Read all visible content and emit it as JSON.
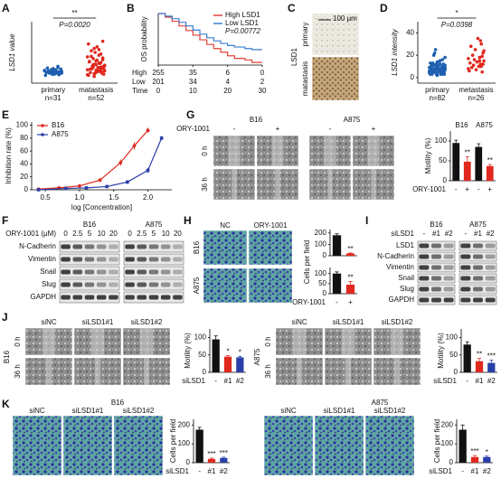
{
  "panel_labels": [
    "A",
    "B",
    "C",
    "D",
    "E",
    "F",
    "G",
    "H",
    "I",
    "J",
    "K"
  ],
  "chart_data": [
    {
      "type": "dot",
      "ylabel": "LSD1 value",
      "categories": [
        "primary",
        "matastasis"
      ],
      "n_labels": [
        "n=31",
        "n=52"
      ],
      "groups": [
        {
          "color": "#1f5fb0",
          "values": [
            22,
            18,
            25,
            20,
            15,
            28,
            19,
            23,
            17,
            21,
            26,
            16,
            24,
            20,
            18,
            22,
            27,
            19,
            14,
            23,
            21,
            25,
            17,
            20,
            30,
            18,
            22,
            24,
            16,
            19,
            21
          ]
        },
        {
          "color": "#e0281e",
          "values": [
            15,
            22,
            30,
            45,
            18,
            25,
            35,
            60,
            28,
            20,
            40,
            55,
            12,
            33,
            26,
            48,
            19,
            38,
            70,
            24,
            31,
            16,
            42,
            29,
            52,
            21,
            36,
            27,
            65,
            23,
            34,
            17,
            44,
            30,
            58,
            25,
            39,
            14,
            47,
            32,
            26,
            75,
            20,
            37,
            28,
            50,
            22,
            41,
            33,
            18,
            62,
            29
          ]
        }
      ],
      "ylim": [
        0,
        110
      ],
      "sig": "**",
      "p_label": "P=0.0020"
    },
    {
      "type": "step",
      "ylabel": "OS probability",
      "series": [
        {
          "name": "High LSD1",
          "color": "#e0413a",
          "x": [
            0,
            2,
            4,
            6,
            8,
            10,
            12,
            14,
            16,
            18,
            20,
            22,
            25,
            27,
            30
          ],
          "values": [
            1,
            0.93,
            0.85,
            0.76,
            0.67,
            0.58,
            0.49,
            0.4,
            0.32,
            0.25,
            0.18,
            0.13,
            0.1,
            0.05,
            0.05
          ]
        },
        {
          "name": "Low LSD1",
          "color": "#3a7fd0",
          "x": [
            0,
            2,
            4,
            6,
            8,
            10,
            12,
            14,
            16,
            18,
            20,
            22,
            25,
            27,
            30
          ],
          "values": [
            1,
            0.95,
            0.9,
            0.83,
            0.76,
            0.68,
            0.6,
            0.53,
            0.47,
            0.42,
            0.38,
            0.35,
            0.32,
            0.3,
            0.3
          ]
        }
      ],
      "p_label": "P=0.00772",
      "xlim": [
        0,
        30
      ],
      "ylim": [
        0,
        1
      ],
      "xticks": [
        0,
        10,
        20,
        30
      ],
      "time_label": "Time",
      "risk_table": [
        {
          "label": "High",
          "values": [
            255,
            35,
            6,
            0
          ]
        },
        {
          "label": "Low",
          "values": [
            201,
            34,
            4,
            2
          ]
        }
      ]
    },
    {
      "type": "dot",
      "ylabel": "LSD1 intensity",
      "categories": [
        "primary",
        "metastasis"
      ],
      "n_labels": [
        "n=82",
        "n=26"
      ],
      "groups": [
        {
          "color": "#1f5fb0",
          "values": [
            5,
            8,
            3,
            12,
            7,
            9,
            4,
            15,
            6,
            10,
            2,
            8,
            11,
            5,
            7,
            13,
            3,
            9,
            6,
            4,
            18,
            7,
            5,
            10,
            8,
            3,
            12,
            6,
            9,
            14,
            4,
            7,
            22,
            5,
            8,
            11,
            6,
            3,
            9,
            7,
            10,
            5,
            16,
            8,
            4,
            12,
            7,
            6,
            9,
            3,
            25,
            8,
            5,
            11,
            7,
            4,
            13,
            6,
            9,
            5,
            8,
            10,
            3,
            7,
            15,
            6,
            9,
            4,
            12,
            8,
            5,
            20,
            7,
            6,
            10,
            4,
            9,
            11,
            3,
            7,
            6,
            8
          ]
        },
        {
          "color": "#e0281e",
          "values": [
            8,
            15,
            22,
            5,
            30,
            12,
            18,
            10,
            35,
            14,
            7,
            25,
            16,
            11,
            20,
            9,
            28,
            13,
            6,
            17,
            24,
            12,
            19,
            10,
            33,
            15
          ]
        }
      ],
      "ylim": [
        -5,
        50
      ],
      "yticks": [
        0,
        20,
        40
      ],
      "sig": "*",
      "p_label": "P=0.0398"
    },
    {
      "type": "line",
      "ylabel": "Inhibition rate (%)",
      "xlabel": "log [Concentration]",
      "series": [
        {
          "name": "B16",
          "color": "#e0281e",
          "x": [
            0.4,
            0.7,
            1.0,
            1.3,
            1.6,
            1.8,
            2.0
          ],
          "values": [
            1,
            3,
            6,
            15,
            42,
            68,
            92
          ],
          "errors": [
            1,
            1,
            2,
            3,
            5,
            6,
            4
          ]
        },
        {
          "name": "A875",
          "color": "#2a3fa8",
          "x": [
            0.4,
            0.8,
            1.1,
            1.4,
            1.7,
            2.0,
            2.2
          ],
          "values": [
            0,
            2,
            3,
            5,
            12,
            30,
            80
          ],
          "errors": [
            1,
            1,
            1,
            2,
            3,
            4,
            3
          ]
        }
      ],
      "xlim": [
        0.3,
        2.35
      ],
      "ylim": [
        0,
        105
      ],
      "xticks": [
        0.5,
        {
          "value": 1,
          "label": "1.0"
        },
        1.5,
        {
          "value": 2,
          "label": "2.0"
        }
      ],
      "yticks": [
        0,
        20,
        40,
        60,
        80,
        100
      ]
    },
    {
      "type": "bar",
      "ylabel": "Motility (%)",
      "xlabel": "ORY-1001",
      "categories": [
        "-",
        "+",
        "-",
        "+"
      ],
      "group_labels": [
        "B16",
        "A875"
      ],
      "values": [
        95,
        48,
        85,
        37
      ],
      "errors": [
        7,
        12,
        8,
        4
      ],
      "colors": [
        "#111111",
        "#e0281e",
        "#111111",
        "#e0281e"
      ],
      "sig": [
        null,
        "**",
        null,
        "**"
      ],
      "ylim": [
        0,
        125
      ],
      "yticks": [
        0,
        50,
        100
      ]
    },
    {
      "type": "bar",
      "ylabel": "Cells per field",
      "values": [
        180,
        20
      ],
      "errors": [
        12,
        4
      ],
      "colors": [
        "#111111",
        "#e0281e"
      ],
      "sig": [
        null,
        "**"
      ],
      "ylim": [
        0,
        230
      ],
      "yticks": [
        0,
        100,
        200
      ]
    },
    {
      "type": "bar",
      "xlabel": "ORY-1001",
      "categories": [
        "-",
        "+"
      ],
      "values": [
        100,
        45
      ],
      "errors": [
        8,
        15
      ],
      "colors": [
        "#111111",
        "#e0281e"
      ],
      "sig": [
        null,
        "**"
      ],
      "ylim": [
        0,
        130
      ],
      "yticks": [
        0,
        50,
        100
      ]
    },
    {
      "type": "bar",
      "ylabel": "Motility (%)",
      "xlabel": "siLSD1",
      "categories": [
        "-",
        "#1",
        "#2"
      ],
      "values": [
        95,
        45,
        43
      ],
      "errors": [
        10,
        3,
        3
      ],
      "colors": [
        "#111111",
        "#e0281e",
        "#2a3fa8"
      ],
      "sig": [
        null,
        "*",
        "*"
      ],
      "ylim": [
        0,
        125
      ],
      "yticks": [
        0,
        50,
        100
      ]
    },
    {
      "type": "bar",
      "ylabel": "Motility (%)",
      "xlabel": "siLSD1",
      "categories": [
        "-",
        "#1",
        "#2"
      ],
      "values": [
        80,
        32,
        27
      ],
      "errors": [
        8,
        8,
        8
      ],
      "colors": [
        "#111111",
        "#e0281e",
        "#2a3fa8"
      ],
      "sig": [
        null,
        "**",
        "***"
      ],
      "ylim": [
        0,
        125
      ],
      "yticks": [
        0,
        50,
        100
      ]
    },
    {
      "type": "bar",
      "ylabel": "Cells per field",
      "xlabel": "siLSD1",
      "categories": [
        "-",
        "#1",
        "#2"
      ],
      "values": [
        175,
        20,
        25
      ],
      "errors": [
        12,
        4,
        4
      ],
      "colors": [
        "#111111",
        "#e0281e",
        "#2a3fa8"
      ],
      "sig": [
        null,
        "***",
        "***"
      ],
      "ylim": [
        0,
        230
      ],
      "yticks": [
        0,
        100,
        200
      ]
    },
    {
      "type": "bar",
      "ylabel": "Cells per field",
      "xlabel": "siLSD1",
      "categories": [
        "-",
        "#1",
        "#2"
      ],
      "values": [
        175,
        30,
        30
      ],
      "errors": [
        25,
        8,
        5
      ],
      "colors": [
        "#111111",
        "#e0281e",
        "#2a3fa8"
      ],
      "sig": [
        null,
        "***",
        "*"
      ],
      "ylim": [
        0,
        230
      ],
      "yticks": [
        0,
        100,
        200
      ]
    }
  ],
  "images": {
    "C": {
      "scale": "100 μm",
      "row_title": "LSD1",
      "rows": [
        "primary",
        "matastasis"
      ]
    },
    "G": {
      "groups": [
        "B16",
        "A875"
      ],
      "cols": [
        "-",
        "+",
        "-",
        "+"
      ],
      "treatment": "ORY-1001",
      "rows": [
        "0 h",
        "36 h"
      ]
    },
    "H": {
      "cols": [
        "NC",
        "ORY-1001"
      ],
      "rows": [
        "B16",
        "A875"
      ]
    },
    "J": [
      {
        "cell": "B16",
        "cols": [
          "siNC",
          "siLSD1#1",
          "siLSD1#2"
        ],
        "rows": [
          "0 h",
          "36 h"
        ]
      },
      {
        "cell": "A875",
        "cols": [
          "siNC",
          "siLSD1#1",
          "siLSD1#2"
        ],
        "rows": [
          "0 h",
          "36 h"
        ]
      }
    ],
    "K": [
      {
        "cell": "B16",
        "cols": [
          "siNC",
          "siLSD1#1",
          "siLSD1#2"
        ]
      },
      {
        "cell": "A875",
        "cols": [
          "siNC",
          "siLSD1#1",
          "siLSD1#2"
        ]
      }
    ]
  },
  "blots": {
    "F": {
      "treatment": "ORY-1001 (μM)",
      "groups": [
        "B16",
        "A875"
      ],
      "lanes": [
        "0",
        "2.5",
        "5",
        "10",
        "20"
      ],
      "proteins": [
        "N-Cadherin",
        "Vimentin",
        "Snail",
        "Slug",
        "GAPDH"
      ]
    },
    "I": {
      "treatment": "siLSD1",
      "groups": [
        "B16",
        "A875"
      ],
      "lanes": [
        "-",
        "#1",
        "#2"
      ],
      "proteins": [
        "LSD1",
        "N-Cadherin",
        "Vimentin",
        "Snail",
        "Slug",
        "GAPDH"
      ]
    }
  }
}
